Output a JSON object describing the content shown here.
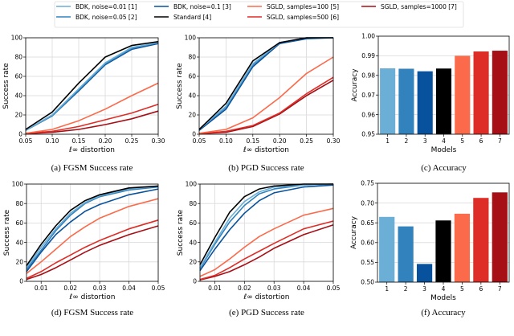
{
  "legend": [
    {
      "label": "BDK, noise=0.01 [1]",
      "color": "#6baed6"
    },
    {
      "label": "BDK, noise=0.05 [2]",
      "color": "#3182bd"
    },
    {
      "label": "BDK, noise=0.1 [3]",
      "color": "#08519c"
    },
    {
      "label": "Standard [4]",
      "color": "#000000"
    },
    {
      "label": "SGLD, samples=100 [5]",
      "color": "#fb6a4a"
    },
    {
      "label": "SGLD, samples=500 [6]",
      "color": "#de2d26"
    },
    {
      "label": "SGLD, samples=1000 [7]",
      "color": "#a50f15"
    }
  ],
  "chart_data": [
    {
      "type": "line",
      "caption": "(a) FGSM Success rate",
      "xlabel": "ℓ∞ distortion",
      "ylabel": "Success rate",
      "xlim": [
        0.05,
        0.3
      ],
      "ylim": [
        0,
        100
      ],
      "xticks": [
        "0.05",
        "0.10",
        "0.15",
        "0.20",
        "0.25",
        "0.30"
      ],
      "yticks": [
        "0",
        "20",
        "40",
        "60",
        "80",
        "100"
      ],
      "grid": true,
      "x": [
        0.05,
        0.1,
        0.15,
        0.2,
        0.25,
        0.3
      ],
      "series": [
        {
          "name": "BDK, noise=0.01 [1]",
          "values": [
            4,
            20,
            47,
            74,
            90,
            95
          ]
        },
        {
          "name": "BDK, noise=0.05 [2]",
          "values": [
            4,
            19,
            46,
            73,
            89,
            95
          ]
        },
        {
          "name": "BDK, noise=0.1 [3]",
          "values": [
            4,
            19,
            45,
            72,
            88,
            94
          ]
        },
        {
          "name": "Standard [4]",
          "values": [
            5,
            23,
            53,
            80,
            92,
            96
          ]
        },
        {
          "name": "SGLD, samples=100 [5]",
          "values": [
            1,
            5,
            14,
            26,
            40,
            53
          ]
        },
        {
          "name": "SGLD, samples=500 [6]",
          "values": [
            1,
            3,
            8,
            15,
            22,
            31
          ]
        },
        {
          "name": "SGLD, samples=1000 [7]",
          "values": [
            0.5,
            2,
            5,
            10,
            16,
            24
          ]
        }
      ]
    },
    {
      "type": "line",
      "caption": "(b) PGD Success rate",
      "xlabel": "ℓ∞ distortion",
      "ylabel": "Success rate",
      "xlim": [
        0.05,
        0.3
      ],
      "ylim": [
        0,
        100
      ],
      "xticks": [
        "0.05",
        "0.10",
        "0.15",
        "0.20",
        "0.25",
        "0.30"
      ],
      "yticks": [
        "0",
        "20",
        "40",
        "60",
        "80",
        "100"
      ],
      "grid": true,
      "x": [
        0.05,
        0.1,
        0.15,
        0.2,
        0.25,
        0.3
      ],
      "series": [
        {
          "name": "BDK, noise=0.01 [1]",
          "values": [
            5,
            29,
            73,
            95,
            100,
            100
          ]
        },
        {
          "name": "BDK, noise=0.05 [2]",
          "values": [
            5,
            28,
            72,
            95,
            100,
            100
          ]
        },
        {
          "name": "BDK, noise=0.1 [3]",
          "values": [
            4,
            26,
            70,
            94,
            99,
            100
          ]
        },
        {
          "name": "Standard [4]",
          "values": [
            5,
            32,
            76,
            95,
            100,
            100
          ]
        },
        {
          "name": "SGLD, samples=100 [5]",
          "values": [
            1,
            5,
            17,
            38,
            63,
            80
          ]
        },
        {
          "name": "SGLD, samples=500 [6]",
          "values": [
            0.5,
            3,
            9,
            22,
            42,
            59
          ]
        },
        {
          "name": "SGLD, samples=1000 [7]",
          "values": [
            0.5,
            2,
            8,
            21,
            40,
            56
          ]
        }
      ]
    },
    {
      "type": "bar",
      "caption": "(c) Accuracy",
      "xlabel": "Models",
      "ylabel": "Accuracy",
      "categories": [
        "1",
        "2",
        "3",
        "4",
        "5",
        "6",
        "7"
      ],
      "ylim": [
        0.95,
        1.0
      ],
      "yticks": [
        "0.95",
        "0.96",
        "0.97",
        "0.98",
        "0.99",
        "1.00"
      ],
      "grid": true,
      "values": [
        0.9836,
        0.9834,
        0.9821,
        0.9835,
        0.99,
        0.9922,
        0.9926
      ]
    },
    {
      "type": "line",
      "caption": "(d) FGSM Success rate",
      "xlabel": "ℓ∞ distortion",
      "ylabel": "Success rate",
      "xlim": [
        0.005,
        0.05
      ],
      "ylim": [
        0,
        100
      ],
      "xticks": [
        "0.01",
        "0.02",
        "0.03",
        "0.04",
        "0.05"
      ],
      "yticks": [
        "0",
        "20",
        "40",
        "60",
        "80",
        "100"
      ],
      "grid": true,
      "x": [
        0.005,
        0.01,
        0.015,
        0.02,
        0.025,
        0.03,
        0.04,
        0.05
      ],
      "series": [
        {
          "name": "BDK, noise=0.01 [1]",
          "values": [
            14,
            35,
            54,
            70,
            81,
            88,
            95,
            98
          ]
        },
        {
          "name": "BDK, noise=0.05 [2]",
          "values": [
            12,
            32,
            52,
            68,
            80,
            87,
            94,
            97
          ]
        },
        {
          "name": "BDK, noise=0.1 [3]",
          "values": [
            10,
            30,
            48,
            61,
            72,
            79,
            89,
            95
          ]
        },
        {
          "name": "Standard [4]",
          "values": [
            16,
            38,
            57,
            73,
            83,
            89,
            96,
            98
          ]
        },
        {
          "name": "SGLD, samples=100 [5]",
          "values": [
            8,
            20,
            33,
            46,
            56,
            65,
            77,
            85
          ]
        },
        {
          "name": "SGLD, samples=500 [6]",
          "values": [
            3,
            10,
            19,
            27,
            35,
            42,
            54,
            63
          ]
        },
        {
          "name": "SGLD, samples=1000 [7]",
          "values": [
            2,
            7,
            14,
            22,
            30,
            37,
            48,
            57
          ]
        }
      ]
    },
    {
      "type": "line",
      "caption": "(e) PGD Success rate",
      "xlabel": "ℓ∞ distortion",
      "ylabel": "Success rate",
      "xlim": [
        0.005,
        0.05
      ],
      "ylim": [
        0,
        100
      ],
      "xticks": [
        "0.01",
        "0.02",
        "0.03",
        "0.04",
        "0.05"
      ],
      "yticks": [
        "0",
        "20",
        "40",
        "60",
        "80",
        "100"
      ],
      "grid": true,
      "x": [
        0.005,
        0.01,
        0.015,
        0.02,
        0.025,
        0.03,
        0.04,
        0.05
      ],
      "series": [
        {
          "name": "BDK, noise=0.01 [1]",
          "values": [
            14,
            40,
            65,
            82,
            92,
            97,
            99,
            100
          ]
        },
        {
          "name": "BDK, noise=0.05 [2]",
          "values": [
            13,
            38,
            61,
            78,
            90,
            95,
            99,
            100
          ]
        },
        {
          "name": "BDK, noise=0.1 [3]",
          "values": [
            11,
            33,
            53,
            70,
            83,
            91,
            97,
            99
          ]
        },
        {
          "name": "Standard [4]",
          "values": [
            17,
            45,
            71,
            87,
            95,
            98,
            100,
            100
          ]
        },
        {
          "name": "SGLD, samples=100 [5]",
          "values": [
            5,
            12,
            23,
            35,
            46,
            54,
            68,
            75
          ]
        },
        {
          "name": "SGLD, samples=500 [6]",
          "values": [
            2,
            6,
            14,
            23,
            31,
            39,
            54,
            62
          ]
        },
        {
          "name": "SGLD, samples=1000 [7]",
          "values": [
            1.5,
            5,
            10,
            17,
            25,
            34,
            48,
            58
          ]
        }
      ]
    },
    {
      "type": "bar",
      "caption": "(f) Accuracy",
      "xlabel": "Models",
      "ylabel": "Accuracy",
      "categories": [
        "1",
        "2",
        "3",
        "4",
        "5",
        "6",
        "7"
      ],
      "ylim": [
        0.5,
        0.75
      ],
      "yticks": [
        "0.50",
        "0.55",
        "0.60",
        "0.65",
        "0.70",
        "0.75"
      ],
      "grid": true,
      "values": [
        0.665,
        0.641,
        0.546,
        0.656,
        0.673,
        0.713,
        0.727
      ]
    }
  ]
}
